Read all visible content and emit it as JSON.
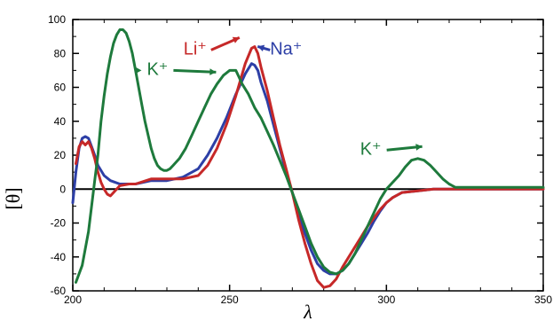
{
  "chart_data": {
    "type": "line",
    "xlabel": "λ",
    "ylabel": "[θ]",
    "xlim": [
      200,
      350
    ],
    "ylim": [
      -60,
      100
    ],
    "x_ticks": [
      200,
      250,
      300,
      350
    ],
    "y_ticks": [
      -60,
      -40,
      -20,
      0,
      20,
      40,
      60,
      80,
      100
    ],
    "zero_line": true,
    "grid": false,
    "series": [
      {
        "color": "#2d3fa6",
        "points": [
          [
            200,
            -8
          ],
          [
            201,
            10
          ],
          [
            202,
            24
          ],
          [
            203,
            30
          ],
          [
            204,
            31
          ],
          [
            205,
            30
          ],
          [
            206,
            25
          ],
          [
            207,
            20
          ],
          [
            208,
            14
          ],
          [
            210,
            8
          ],
          [
            212,
            5
          ],
          [
            215,
            3
          ],
          [
            218,
            3
          ],
          [
            220,
            3
          ],
          [
            225,
            5
          ],
          [
            230,
            5
          ],
          [
            235,
            7
          ],
          [
            240,
            12
          ],
          [
            243,
            20
          ],
          [
            246,
            30
          ],
          [
            249,
            42
          ],
          [
            252,
            56
          ],
          [
            255,
            68
          ],
          [
            257,
            74
          ],
          [
            258,
            73
          ],
          [
            259,
            70
          ],
          [
            260,
            63
          ],
          [
            262,
            52
          ],
          [
            264,
            38
          ],
          [
            266,
            24
          ],
          [
            268,
            10
          ],
          [
            270,
            -2
          ],
          [
            272,
            -14
          ],
          [
            274,
            -26
          ],
          [
            276,
            -36
          ],
          [
            278,
            -44
          ],
          [
            280,
            -48
          ],
          [
            282,
            -50
          ],
          [
            284,
            -50
          ],
          [
            286,
            -48
          ],
          [
            288,
            -44
          ],
          [
            290,
            -38
          ],
          [
            292,
            -32
          ],
          [
            294,
            -26
          ],
          [
            296,
            -19
          ],
          [
            298,
            -13
          ],
          [
            300,
            -8
          ],
          [
            302,
            -5
          ],
          [
            305,
            -2
          ],
          [
            310,
            -1
          ],
          [
            315,
            0
          ],
          [
            320,
            0
          ],
          [
            325,
            0
          ],
          [
            330,
            0
          ],
          [
            335,
            0
          ],
          [
            340,
            0
          ],
          [
            345,
            0
          ],
          [
            350,
            0
          ]
        ]
      },
      {
        "color": "#c62828",
        "points": [
          [
            201,
            15
          ],
          [
            202,
            25
          ],
          [
            203,
            28
          ],
          [
            204,
            26
          ],
          [
            205,
            28
          ],
          [
            206,
            24
          ],
          [
            207,
            18
          ],
          [
            208,
            10
          ],
          [
            209,
            4
          ],
          [
            210,
            0
          ],
          [
            211,
            -3
          ],
          [
            212,
            -4
          ],
          [
            213,
            -2
          ],
          [
            215,
            2
          ],
          [
            218,
            3
          ],
          [
            220,
            3
          ],
          [
            225,
            6
          ],
          [
            230,
            6
          ],
          [
            235,
            6
          ],
          [
            240,
            8
          ],
          [
            243,
            14
          ],
          [
            246,
            24
          ],
          [
            249,
            38
          ],
          [
            252,
            55
          ],
          [
            255,
            74
          ],
          [
            257,
            83
          ],
          [
            258,
            84
          ],
          [
            259,
            80
          ],
          [
            260,
            72
          ],
          [
            262,
            58
          ],
          [
            264,
            42
          ],
          [
            266,
            26
          ],
          [
            268,
            12
          ],
          [
            270,
            -2
          ],
          [
            272,
            -18
          ],
          [
            274,
            -32
          ],
          [
            276,
            -44
          ],
          [
            278,
            -54
          ],
          [
            280,
            -58
          ],
          [
            282,
            -57
          ],
          [
            284,
            -53
          ],
          [
            286,
            -46
          ],
          [
            288,
            -40
          ],
          [
            290,
            -34
          ],
          [
            292,
            -28
          ],
          [
            294,
            -22
          ],
          [
            296,
            -17
          ],
          [
            298,
            -12
          ],
          [
            300,
            -8
          ],
          [
            302,
            -5
          ],
          [
            305,
            -2
          ],
          [
            310,
            -1
          ],
          [
            315,
            0
          ],
          [
            320,
            0
          ],
          [
            325,
            0
          ],
          [
            330,
            0
          ],
          [
            335,
            0
          ],
          [
            340,
            0
          ],
          [
            345,
            0
          ],
          [
            350,
            0
          ]
        ]
      },
      {
        "color": "#1e7a3c",
        "points": [
          [
            201,
            -55
          ],
          [
            203,
            -45
          ],
          [
            205,
            -25
          ],
          [
            206,
            -10
          ],
          [
            207,
            5
          ],
          [
            208,
            20
          ],
          [
            209,
            40
          ],
          [
            210,
            55
          ],
          [
            211,
            68
          ],
          [
            212,
            78
          ],
          [
            213,
            86
          ],
          [
            214,
            91
          ],
          [
            215,
            94
          ],
          [
            216,
            94
          ],
          [
            217,
            92
          ],
          [
            218,
            87
          ],
          [
            219,
            80
          ],
          [
            220,
            70
          ],
          [
            221,
            60
          ],
          [
            222,
            50
          ],
          [
            223,
            40
          ],
          [
            224,
            32
          ],
          [
            225,
            24
          ],
          [
            226,
            18
          ],
          [
            227,
            14
          ],
          [
            228,
            12
          ],
          [
            229,
            11
          ],
          [
            230,
            11
          ],
          [
            231,
            12
          ],
          [
            232,
            14
          ],
          [
            234,
            18
          ],
          [
            236,
            24
          ],
          [
            238,
            32
          ],
          [
            240,
            40
          ],
          [
            242,
            48
          ],
          [
            244,
            56
          ],
          [
            246,
            62
          ],
          [
            248,
            67
          ],
          [
            250,
            70
          ],
          [
            252,
            70
          ],
          [
            253,
            66
          ],
          [
            254,
            62
          ],
          [
            256,
            56
          ],
          [
            258,
            48
          ],
          [
            260,
            42
          ],
          [
            262,
            34
          ],
          [
            264,
            26
          ],
          [
            266,
            17
          ],
          [
            268,
            8
          ],
          [
            270,
            -2
          ],
          [
            272,
            -12
          ],
          [
            274,
            -22
          ],
          [
            276,
            -32
          ],
          [
            278,
            -40
          ],
          [
            280,
            -46
          ],
          [
            282,
            -49
          ],
          [
            284,
            -50
          ],
          [
            286,
            -48
          ],
          [
            288,
            -44
          ],
          [
            290,
            -38
          ],
          [
            292,
            -30
          ],
          [
            294,
            -22
          ],
          [
            296,
            -14
          ],
          [
            298,
            -6
          ],
          [
            300,
            0
          ],
          [
            302,
            4
          ],
          [
            304,
            8
          ],
          [
            306,
            13
          ],
          [
            308,
            17
          ],
          [
            310,
            18
          ],
          [
            312,
            17
          ],
          [
            314,
            14
          ],
          [
            316,
            10
          ],
          [
            318,
            6
          ],
          [
            320,
            3
          ],
          [
            322,
            1
          ],
          [
            325,
            1
          ],
          [
            328,
            1
          ],
          [
            331,
            1
          ],
          [
            334,
            1
          ],
          [
            337,
            1
          ],
          [
            340,
            1
          ],
          [
            345,
            1
          ],
          [
            350,
            1
          ]
        ]
      }
    ],
    "annotations": [
      {
        "text": "K⁺",
        "color": "#1e7a3c",
        "x": 227,
        "y": 68
      },
      {
        "text": "Li⁺",
        "color": "#c62828",
        "x": 248,
        "y": 82
      },
      {
        "text": "Na⁺",
        "color": "#2d3fa6",
        "x": 267,
        "y": 82
      },
      {
        "text": "K⁺",
        "color": "#1e7a3c",
        "x": 294,
        "y": 26
      }
    ]
  }
}
